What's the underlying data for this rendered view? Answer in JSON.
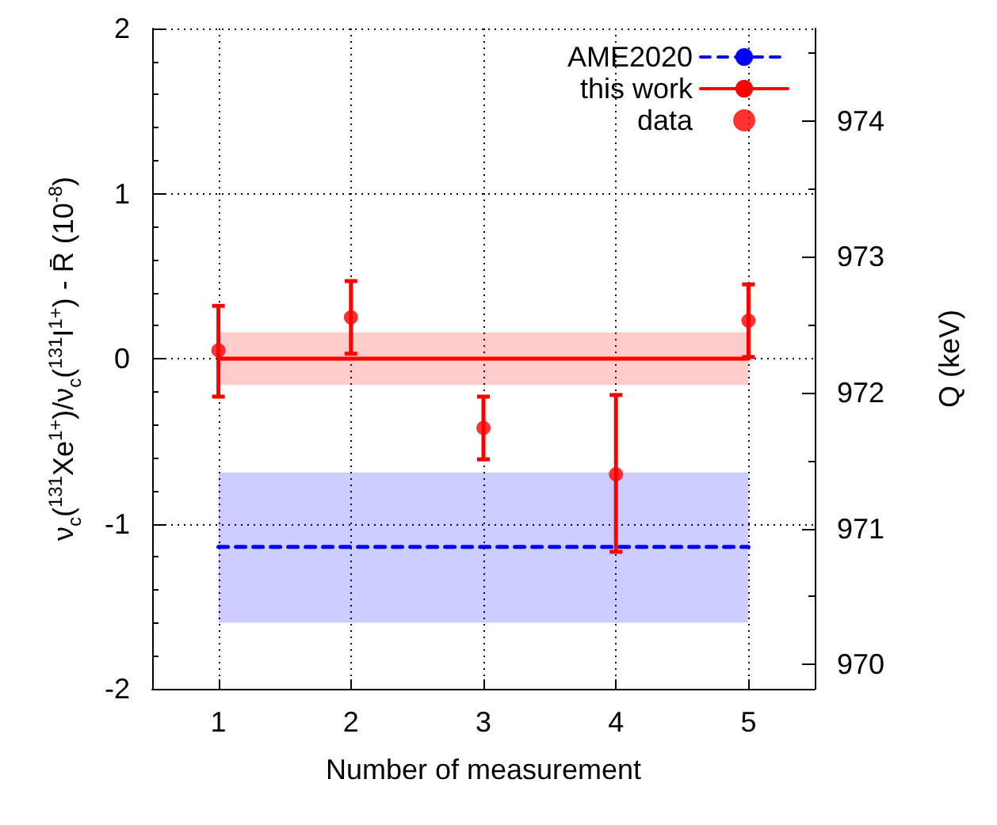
{
  "chart_data": {
    "type": "scatter",
    "xlabel": "Number of measurement",
    "ylabel": "ν$_{c}$($^{131}$Xe$^{1+}$)/ν$_{c}$($^{131}$I$^{1+}$) - R̄ (10$^{-8}$)",
    "y2label": "Q (keV)",
    "xlim": [
      0.5,
      5.5
    ],
    "xticks": [
      1,
      2,
      3,
      4,
      5
    ],
    "ylim": [
      -2,
      2
    ],
    "yticks": [
      -2,
      -1,
      0,
      1,
      2
    ],
    "y2lim": [
      969.82,
      974.68
    ],
    "y2ticks": [
      970,
      971,
      972,
      973,
      974
    ],
    "grid": true,
    "legend": "top right",
    "series": [
      {
        "name": "AME2020",
        "type": "line",
        "color": "#0000ff",
        "line_style": "dashed",
        "marker": "none",
        "x": [
          1,
          5
        ],
        "values": [
          -1.14,
          -1.14
        ],
        "lower": [
          -1.6,
          -1.6
        ],
        "upper": [
          -0.69,
          -0.69
        ]
      },
      {
        "name": "this work",
        "type": "line",
        "color": "#ff0000",
        "line_style": "solid",
        "marker": "none",
        "x": [
          1,
          5
        ],
        "values": [
          0,
          0
        ],
        "lower": [
          -0.16,
          -0.16
        ],
        "upper": [
          0.16,
          0.16
        ]
      },
      {
        "name": "data",
        "color": "#ff0000",
        "marker": "circle",
        "x": [
          1,
          2,
          3,
          4,
          5
        ],
        "values": [
          0.05,
          0.25,
          -0.42,
          -0.7,
          0.23
        ],
        "errors": [
          [
            -0.23,
            0.32
          ],
          [
            0.03,
            0.47
          ],
          [
            -0.61,
            -0.23
          ],
          [
            -1.17,
            -0.22
          ],
          [
            0.01,
            0.45
          ]
        ]
      }
    ]
  }
}
